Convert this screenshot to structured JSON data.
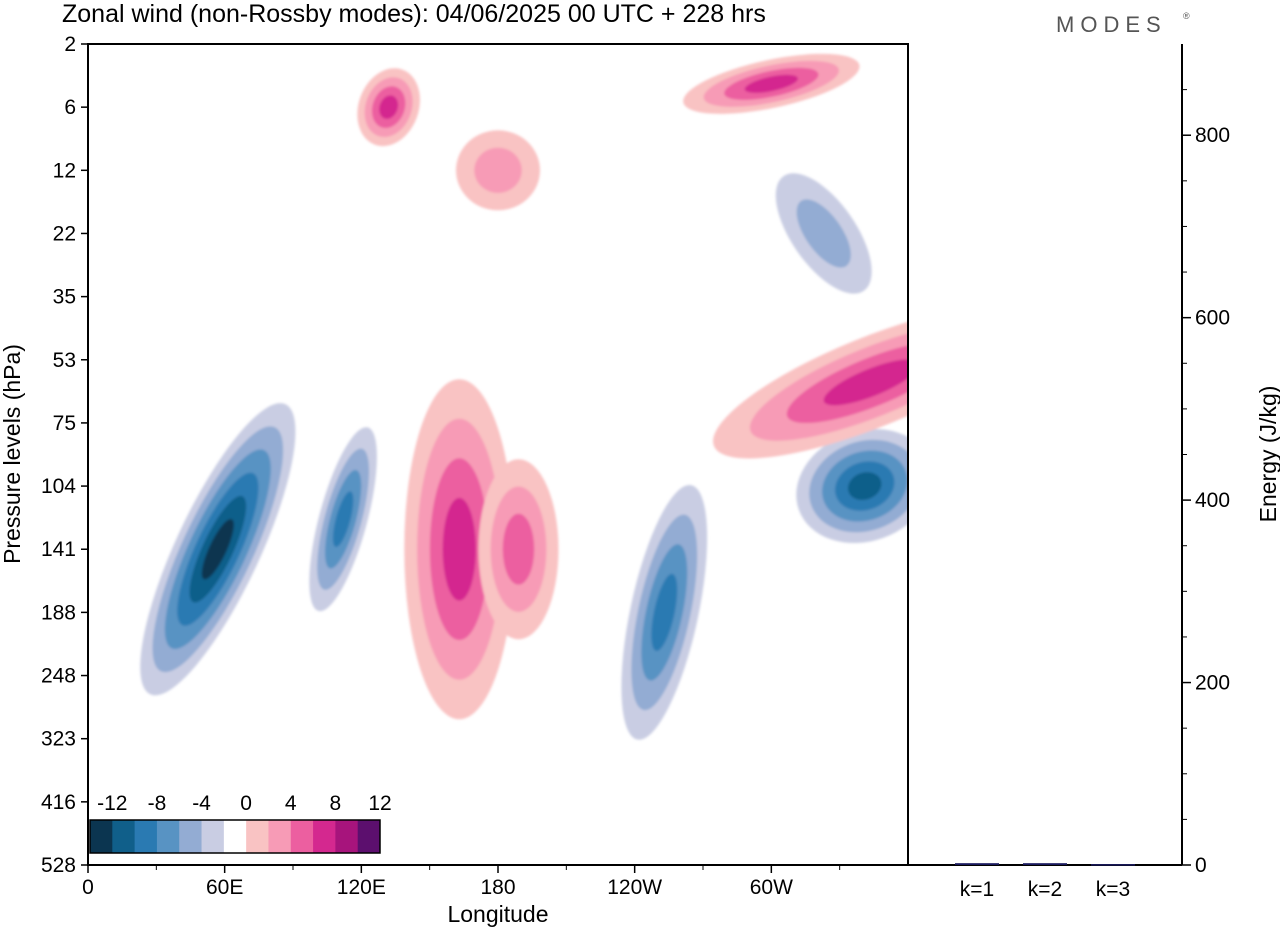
{
  "header": {
    "title": "Zonal wind (non-Rossby modes):  04/06/2025  00 UTC  + 228 hrs",
    "brand": "MODES",
    "brand_mark": "®"
  },
  "chart_data": [
    {
      "type": "heatmap",
      "variable": "Zonal wind",
      "xlabel": "Longitude",
      "ylabel": "Pressure levels (hPa)",
      "x_ticks": [
        "0",
        "60E",
        "120E",
        "180",
        "120W",
        "60W"
      ],
      "y_ticks": [
        "2",
        "6",
        "12",
        "22",
        "35",
        "53",
        "75",
        "104",
        "141",
        "188",
        "248",
        "323",
        "416",
        "528"
      ],
      "colorbar": {
        "labels": [
          "-12",
          "-8",
          "-4",
          "0",
          "4",
          "8",
          "12"
        ],
        "levels": [
          -14,
          -12,
          -10,
          -8,
          -6,
          -4,
          -2,
          2,
          4,
          6,
          8,
          10,
          12,
          14
        ],
        "colors": [
          "#0b3550",
          "#105f8a",
          "#2a7ab2",
          "#5893c3",
          "#93acd3",
          "#c9cde3",
          "#ffffff",
          "#f9c3c3",
          "#f79bb6",
          "#ec5fa0",
          "#d4288f",
          "#a7147c",
          "#5c0f6e"
        ]
      },
      "features": [
        {
          "sign": "negative",
          "lon": 57,
          "level": "141",
          "peak": -13
        },
        {
          "sign": "negative",
          "lon": 112,
          "level": "122",
          "peak": -9
        },
        {
          "sign": "negative",
          "lon": 253,
          "level": "188",
          "peak": -10
        },
        {
          "sign": "negative",
          "lon": 341,
          "level": "104",
          "peak": -11
        },
        {
          "sign": "negative",
          "lon": 323,
          "level": "22",
          "peak": -6
        },
        {
          "sign": "positive",
          "lon": 163,
          "level": "141",
          "peak": 10
        },
        {
          "sign": "positive",
          "lon": 189,
          "level": "141",
          "peak": 8
        },
        {
          "sign": "positive",
          "lon": 344,
          "level": "60",
          "peak": 9
        },
        {
          "sign": "positive",
          "lon": 300,
          "level": "4",
          "peak": 9
        },
        {
          "sign": "positive",
          "lon": 132,
          "level": "6",
          "peak": 9
        },
        {
          "sign": "positive",
          "lon": 180,
          "level": "12",
          "peak": 5
        }
      ]
    },
    {
      "type": "bar",
      "ylabel": "Energy (J/kg)",
      "categories": [
        "k=1",
        "k=2",
        "k=3"
      ],
      "values": [
        2,
        2,
        1
      ],
      "y_ticks": [
        "0",
        "200",
        "400",
        "600",
        "800"
      ],
      "ylim": [
        0,
        900
      ],
      "bar_color": "#1a1a5e"
    }
  ]
}
